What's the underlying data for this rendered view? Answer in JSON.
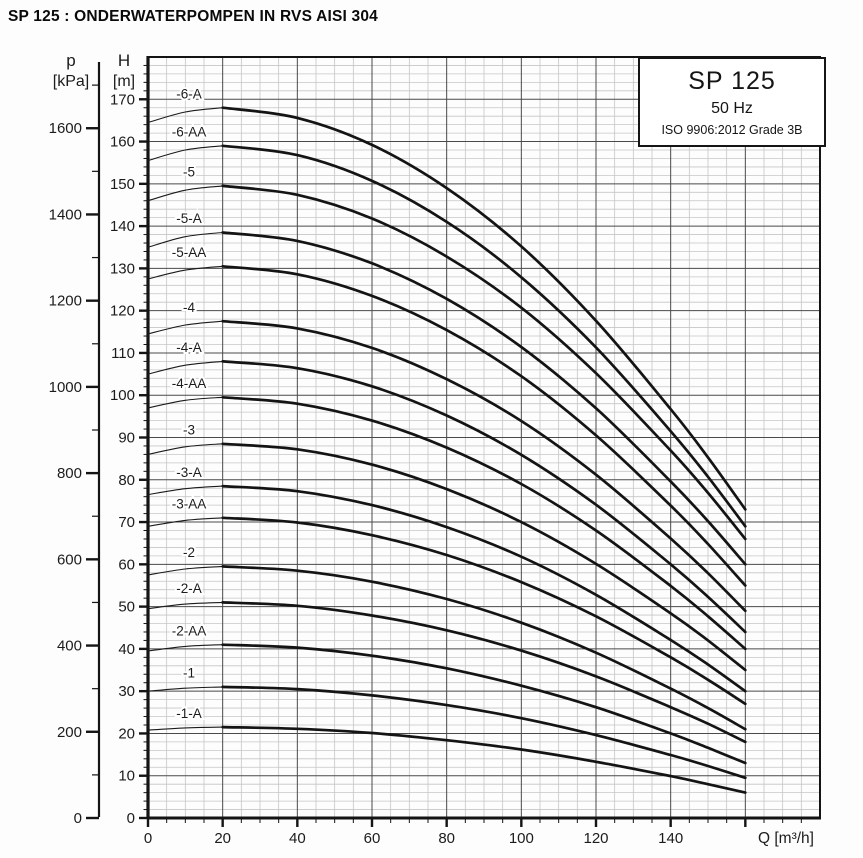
{
  "page_title": "SP 125 : ONDERWATERPOMPEN IN RVS AISI 304",
  "legend_box": {
    "model": "SP 125",
    "frequency": "50 Hz",
    "standard": "ISO 9906:2012 Grade 3B"
  },
  "axes": {
    "pressure": {
      "symbol": "p",
      "unit": "[kPa]"
    },
    "head": {
      "symbol": "H",
      "unit": "[m]"
    },
    "flow": {
      "label": "Q [m³/h]"
    }
  },
  "chart_data": {
    "type": "line",
    "title": "SP 125",
    "subtitle": "50 Hz",
    "standard": "ISO 9906:2012 Grade 3B",
    "xlabel": "Q [m³/h]",
    "ylabel": "H [m]",
    "y2label": "p [kPa]",
    "xlim": [
      0,
      180
    ],
    "ylim": [
      0,
      180
    ],
    "y2lim_kpa": [
      0,
      1765
    ],
    "grid": {
      "x_minor": 5,
      "x_major": 20,
      "y_minor": 2,
      "y_major": 10,
      "visible": true
    },
    "x_ticks": [
      0,
      20,
      40,
      60,
      80,
      100,
      120,
      140
    ],
    "y_ticks": [
      0,
      10,
      20,
      30,
      40,
      50,
      60,
      70,
      80,
      90,
      100,
      110,
      120,
      130,
      140,
      150,
      160,
      170
    ],
    "y2_ticks_kpa": [
      0,
      200,
      400,
      600,
      800,
      1000,
      1200,
      1400,
      1600
    ],
    "legend_position": "top-right",
    "thick_segment_from_q": 20,
    "series": [
      {
        "name": "-6-A",
        "points": [
          [
            0,
            164.5
          ],
          [
            10,
            167.0
          ],
          [
            20,
            168.0
          ],
          [
            40,
            165.6
          ],
          [
            60,
            159.2
          ],
          [
            80,
            149.0
          ],
          [
            100,
            135.2
          ],
          [
            120,
            117.6
          ],
          [
            140,
            96.7
          ],
          [
            150,
            85.3
          ],
          [
            160,
            73.0
          ]
        ]
      },
      {
        "name": "-6-AA",
        "points": [
          [
            0,
            155.5
          ],
          [
            10,
            158.0
          ],
          [
            20,
            159.0
          ],
          [
            40,
            156.8
          ],
          [
            60,
            150.7
          ],
          [
            80,
            141.0
          ],
          [
            100,
            127.9
          ],
          [
            120,
            111.3
          ],
          [
            140,
            91.5
          ],
          [
            150,
            80.7
          ],
          [
            160,
            69.0
          ]
        ]
      },
      {
        "name": "-5",
        "points": [
          [
            0,
            146.0
          ],
          [
            10,
            148.5
          ],
          [
            20,
            149.5
          ],
          [
            40,
            147.4
          ],
          [
            60,
            141.8
          ],
          [
            80,
            132.8
          ],
          [
            100,
            120.7
          ],
          [
            120,
            105.2
          ],
          [
            140,
            86.9
          ],
          [
            150,
            76.9
          ],
          [
            160,
            66.0
          ]
        ]
      },
      {
        "name": "-5-A",
        "points": [
          [
            0,
            135.0
          ],
          [
            10,
            137.5
          ],
          [
            20,
            138.5
          ],
          [
            40,
            136.5
          ],
          [
            60,
            131.2
          ],
          [
            80,
            122.8
          ],
          [
            100,
            111.4
          ],
          [
            120,
            96.9
          ],
          [
            140,
            79.6
          ],
          [
            150,
            70.2
          ],
          [
            160,
            60.0
          ]
        ]
      },
      {
        "name": "-5-AA",
        "points": [
          [
            0,
            127.5
          ],
          [
            10,
            129.6
          ],
          [
            20,
            130.5
          ],
          [
            40,
            128.6
          ],
          [
            60,
            123.5
          ],
          [
            80,
            115.4
          ],
          [
            100,
            104.5
          ],
          [
            120,
            90.5
          ],
          [
            140,
            73.9
          ],
          [
            150,
            64.8
          ],
          [
            160,
            55.0
          ]
        ]
      },
      {
        "name": "-4",
        "points": [
          [
            0,
            114.5
          ],
          [
            10,
            116.6
          ],
          [
            20,
            117.5
          ],
          [
            40,
            115.8
          ],
          [
            60,
            111.2
          ],
          [
            80,
            103.8
          ],
          [
            100,
            93.9
          ],
          [
            120,
            81.2
          ],
          [
            140,
            66.1
          ],
          [
            150,
            57.9
          ],
          [
            160,
            49.0
          ]
        ]
      },
      {
        "name": "-4-A",
        "points": [
          [
            0,
            105.0
          ],
          [
            10,
            107.1
          ],
          [
            20,
            108.0
          ],
          [
            40,
            106.4
          ],
          [
            60,
            102.1
          ],
          [
            80,
            95.2
          ],
          [
            100,
            85.9
          ],
          [
            120,
            74.1
          ],
          [
            140,
            60.0
          ],
          [
            150,
            52.3
          ],
          [
            160,
            44.0
          ]
        ]
      },
      {
        "name": "-4-AA",
        "points": [
          [
            0,
            97.0
          ],
          [
            10,
            98.8
          ],
          [
            20,
            99.5
          ],
          [
            40,
            98.0
          ],
          [
            60,
            94.0
          ],
          [
            80,
            87.6
          ],
          [
            100,
            79.0
          ],
          [
            120,
            68.0
          ],
          [
            140,
            54.9
          ],
          [
            150,
            47.7
          ],
          [
            160,
            40.0
          ]
        ]
      },
      {
        "name": "-3",
        "points": [
          [
            0,
            86.0
          ],
          [
            10,
            87.8
          ],
          [
            20,
            88.5
          ],
          [
            40,
            87.2
          ],
          [
            60,
            83.6
          ],
          [
            80,
            77.8
          ],
          [
            100,
            70.0
          ],
          [
            120,
            60.1
          ],
          [
            140,
            48.4
          ],
          [
            150,
            42.0
          ],
          [
            160,
            35.0
          ]
        ]
      },
      {
        "name": "-3-A",
        "points": [
          [
            0,
            76.5
          ],
          [
            10,
            77.9
          ],
          [
            20,
            78.5
          ],
          [
            40,
            77.3
          ],
          [
            60,
            74.0
          ],
          [
            80,
            68.8
          ],
          [
            100,
            61.8
          ],
          [
            120,
            52.8
          ],
          [
            140,
            42.1
          ],
          [
            150,
            36.3
          ],
          [
            160,
            30.0
          ]
        ]
      },
      {
        "name": "-3-AA",
        "points": [
          [
            0,
            69.0
          ],
          [
            10,
            70.4
          ],
          [
            20,
            71.0
          ],
          [
            40,
            69.9
          ],
          [
            60,
            66.9
          ],
          [
            80,
            62.2
          ],
          [
            100,
            55.8
          ],
          [
            120,
            47.7
          ],
          [
            140,
            38.0
          ],
          [
            150,
            32.7
          ],
          [
            160,
            27.0
          ]
        ]
      },
      {
        "name": "-2",
        "points": [
          [
            0,
            57.5
          ],
          [
            10,
            58.9
          ],
          [
            20,
            59.5
          ],
          [
            40,
            58.5
          ],
          [
            60,
            55.9
          ],
          [
            80,
            51.8
          ],
          [
            100,
            46.2
          ],
          [
            120,
            39.1
          ],
          [
            140,
            30.6
          ],
          [
            150,
            26.0
          ],
          [
            160,
            21.0
          ]
        ]
      },
      {
        "name": "-2-A",
        "points": [
          [
            0,
            49.5
          ],
          [
            10,
            50.6
          ],
          [
            20,
            51.0
          ],
          [
            40,
            50.2
          ],
          [
            60,
            47.9
          ],
          [
            80,
            44.4
          ],
          [
            100,
            39.6
          ],
          [
            120,
            33.5
          ],
          [
            140,
            26.2
          ],
          [
            150,
            22.3
          ],
          [
            160,
            18.0
          ]
        ]
      },
      {
        "name": "-2-AA",
        "points": [
          [
            0,
            39.5
          ],
          [
            10,
            40.6
          ],
          [
            20,
            41.0
          ],
          [
            40,
            40.3
          ],
          [
            60,
            38.4
          ],
          [
            80,
            35.4
          ],
          [
            100,
            31.3
          ],
          [
            120,
            26.2
          ],
          [
            140,
            20.0
          ],
          [
            150,
            16.6
          ],
          [
            160,
            13.0
          ]
        ]
      },
      {
        "name": "-1",
        "points": [
          [
            0,
            30.0
          ],
          [
            10,
            30.7
          ],
          [
            20,
            31.0
          ],
          [
            40,
            30.5
          ],
          [
            60,
            29.0
          ],
          [
            80,
            26.7
          ],
          [
            100,
            23.6
          ],
          [
            120,
            19.6
          ],
          [
            140,
            14.9
          ],
          [
            150,
            12.3
          ],
          [
            160,
            9.5
          ]
        ]
      },
      {
        "name": "-1-A",
        "points": [
          [
            0,
            20.8
          ],
          [
            10,
            21.3
          ],
          [
            20,
            21.5
          ],
          [
            40,
            21.1
          ],
          [
            60,
            20.1
          ],
          [
            80,
            18.4
          ],
          [
            100,
            16.2
          ],
          [
            120,
            13.3
          ],
          [
            140,
            9.9
          ],
          [
            150,
            8.0
          ],
          [
            160,
            6.0
          ]
        ]
      }
    ]
  }
}
